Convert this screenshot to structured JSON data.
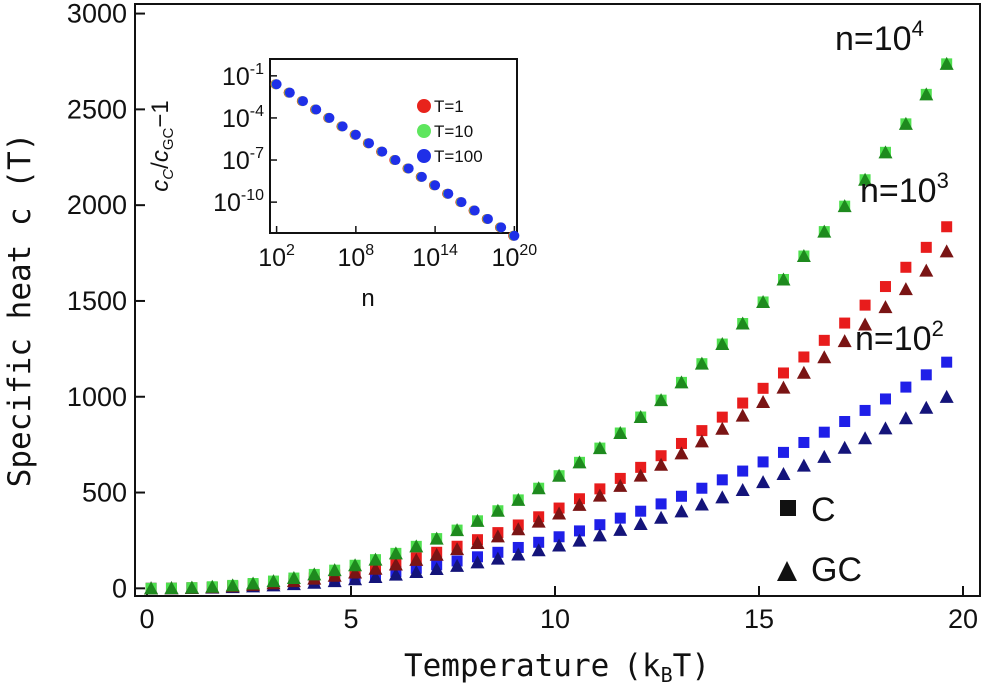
{
  "chart_data": [
    {
      "type": "scatter",
      "title": "",
      "xlabel": "Temperature",
      "xlabel_unit": "k",
      "xlabel_unit_sub": "B",
      "xlabel_unit_tail": "T",
      "ylabel": "Specific heat c (T)",
      "xlim": [
        0,
        20
      ],
      "ylim": [
        -40,
        3050
      ],
      "xticks": [
        "0",
        "5",
        "10",
        "15",
        "20"
      ],
      "yticks": [
        "0",
        "500",
        "1000",
        "1500",
        "2000",
        "2500",
        "3000"
      ],
      "x": [
        0.1,
        0.6,
        1.1,
        1.6,
        2.1,
        2.6,
        3.1,
        3.6,
        4.1,
        4.6,
        5.1,
        5.6,
        6.1,
        6.6,
        7.1,
        7.6,
        8.1,
        8.6,
        9.1,
        9.6,
        10.1,
        10.6,
        11.1,
        11.6,
        12.1,
        12.6,
        13.1,
        13.6,
        14.1,
        14.6,
        15.1,
        15.6,
        16.1,
        16.6,
        17.1,
        17.6,
        18.1,
        18.6,
        19.1,
        19.6
      ],
      "series": [
        {
          "name": "C, n=10^2",
          "marker": "square",
          "color": "#1f1fe8",
          "a": 1.55,
          "b": 2.23
        },
        {
          "name": "GC, n=10^2",
          "marker": "triangle",
          "color": "#14147a",
          "a": 1.2,
          "b": 2.26
        },
        {
          "name": "C, n=10^3",
          "marker": "square",
          "color": "#e81c1c",
          "a": 2.2,
          "b": 2.27
        },
        {
          "name": "GC, n=10^3",
          "marker": "triangle",
          "color": "#7a1414",
          "a": 2.05,
          "b": 2.27
        },
        {
          "name": "C, n=10^4",
          "marker": "square",
          "color": "#4fe04f",
          "a": 2.75,
          "b": 2.32
        },
        {
          "name": "GC, n=10^4",
          "marker": "triangle",
          "color": "#1e8a1e",
          "a": 2.75,
          "b": 2.32
        }
      ],
      "annotations": [
        {
          "text": "n=10",
          "sup": "4"
        },
        {
          "text": "n=10",
          "sup": "3"
        },
        {
          "text": "n=10",
          "sup": "2"
        }
      ],
      "legend": [
        {
          "label": "C",
          "marker": "square"
        },
        {
          "label": "GC",
          "marker": "triangle"
        }
      ],
      "legend_position": "bottom-right"
    },
    {
      "type": "scatter",
      "title": "inset",
      "scale": "log-log",
      "xlabel": "n",
      "ylabel": "c_C/c_GC − 1",
      "ylabel_parts": {
        "c1": "c",
        "s1": "C",
        "slash": "/",
        "c2": "c",
        "s2": "GC",
        "tail": "−1"
      },
      "xlim_log10": [
        1.5,
        20.2
      ],
      "ylim_log10": [
        -12.2,
        0.2
      ],
      "xticks": [
        {
          "base": "10",
          "exp": "2"
        },
        {
          "base": "10",
          "exp": "8"
        },
        {
          "base": "10",
          "exp": "14"
        },
        {
          "base": "10",
          "exp": "20"
        }
      ],
      "yticks": [
        {
          "base": "10",
          "exp": "-1"
        },
        {
          "base": "10",
          "exp": "-4"
        },
        {
          "base": "10",
          "exp": "-7"
        },
        {
          "base": "10",
          "exp": "-10"
        }
      ],
      "log10_n": [
        2,
        3,
        4,
        5,
        6,
        7,
        8,
        9,
        10,
        11,
        12,
        13,
        14,
        15,
        16,
        17,
        18,
        19,
        20
      ],
      "log10_y": [
        -1.6,
        -2.2,
        -2.8,
        -3.4,
        -4.0,
        -4.6,
        -5.2,
        -5.8,
        -6.4,
        -7.0,
        -7.6,
        -8.2,
        -8.8,
        -9.4,
        -10.0,
        -10.6,
        -11.2,
        -11.8,
        -12.4
      ],
      "series": [
        {
          "name": "T=1",
          "color": "#e8231c"
        },
        {
          "name": "T=10",
          "color": "#5ee65e"
        },
        {
          "name": "T=100",
          "color": "#1f2fe8"
        }
      ]
    }
  ]
}
